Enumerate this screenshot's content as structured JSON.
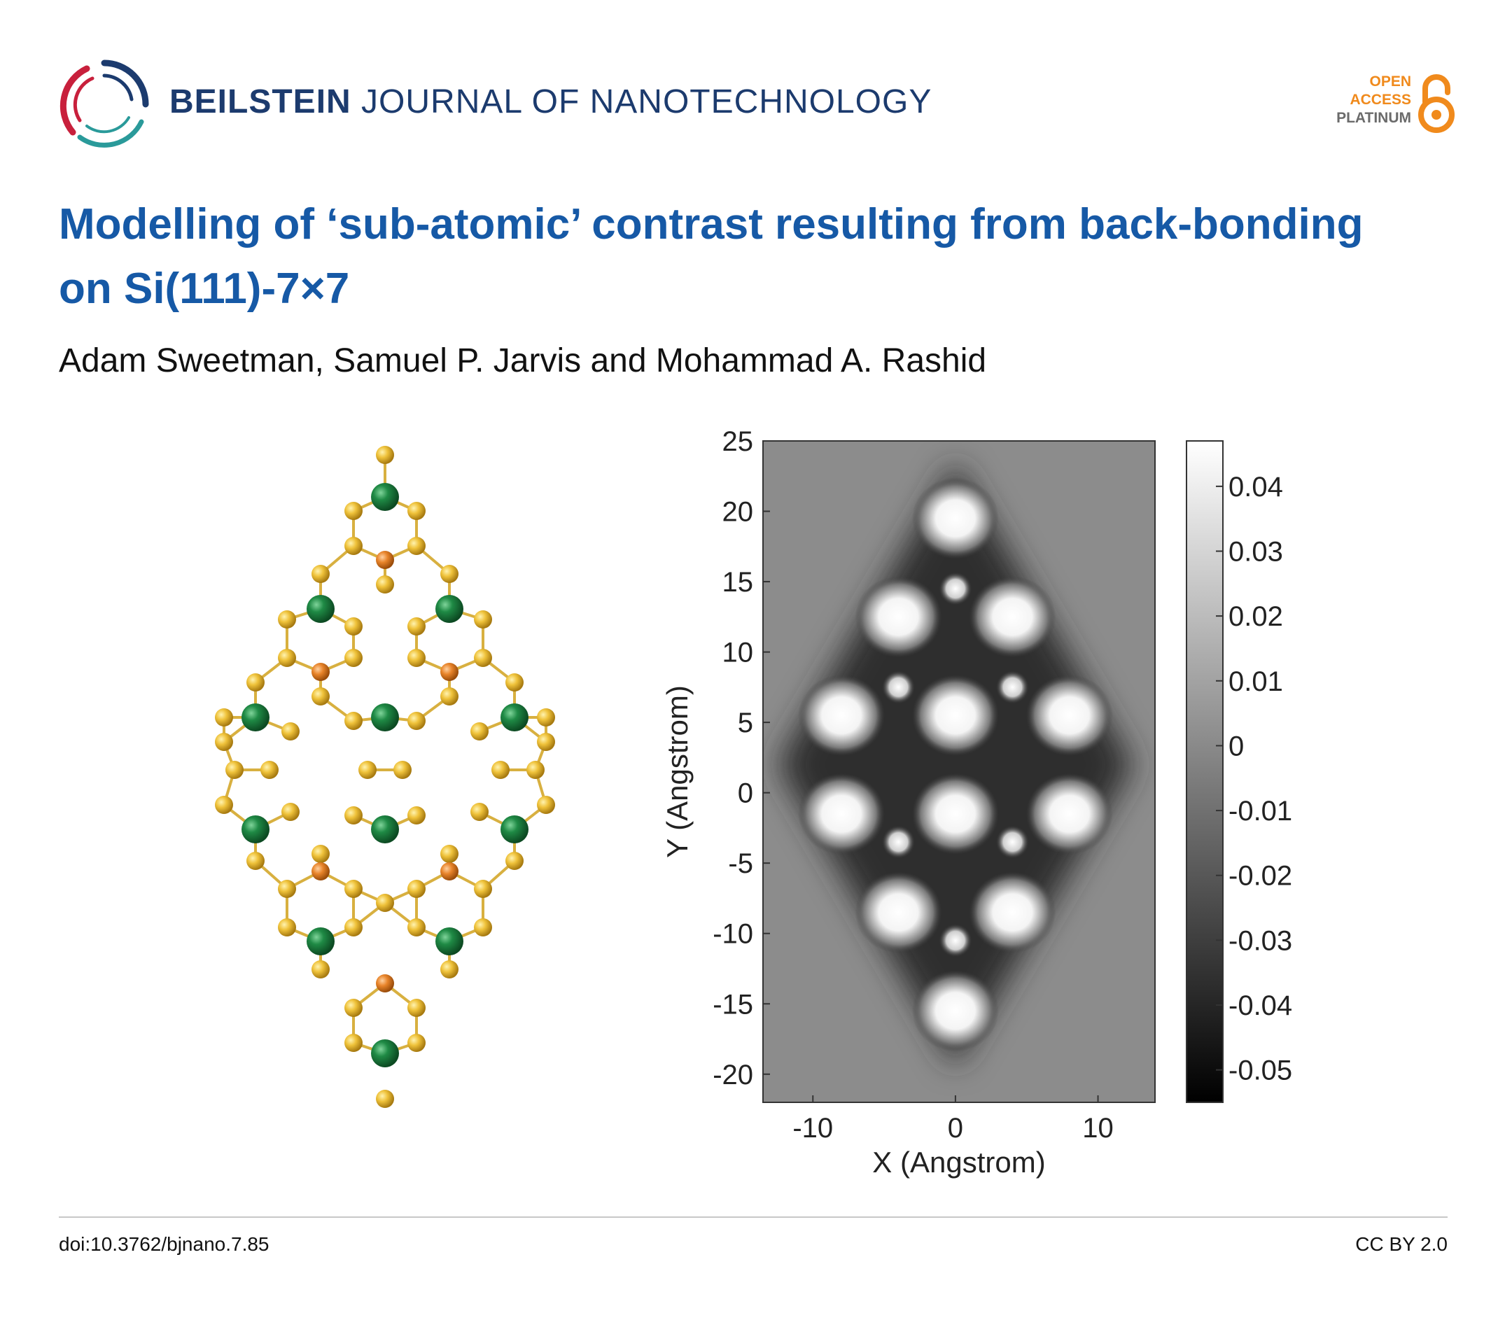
{
  "header": {
    "journal_bold": "BEILSTEIN",
    "journal_rest": " JOURNAL OF NANOTECHNOLOGY",
    "badge": {
      "line1": "OPEN",
      "line2": "ACCESS",
      "line3": "PLATINUM"
    },
    "colors": {
      "journal": "#1c3b6e",
      "badge_orange": "#f08a1c",
      "badge_gray": "#6b6b6b",
      "logo_red": "#c8203c",
      "logo_blue": "#1c3b6e",
      "logo_teal": "#2a9a9a"
    }
  },
  "article": {
    "title": "Modelling of ‘sub-atomic’ contrast resulting from back-bonding on Si(111)-7×7",
    "authors": "Adam Sweetman, Samuel P. Jarvis and Mohammad A. Rashid",
    "title_color": "#1659a6"
  },
  "figure_left": {
    "atom_colors": {
      "gold": "#e8b830",
      "green": "#1f7a3a",
      "orange": "#e07a20",
      "bond": "#d8b040"
    }
  },
  "chart_data": {
    "type": "heatmap",
    "xlabel": "X (Angstrom)",
    "ylabel": "Y (Angstrom)",
    "xlim": [
      -13.5,
      14
    ],
    "ylim": [
      -22,
      25
    ],
    "x_ticks": [
      -10,
      0,
      10
    ],
    "y_ticks": [
      25,
      20,
      15,
      10,
      5,
      0,
      -5,
      -10,
      -15,
      -20
    ],
    "x_tick_labels": [
      "-10",
      "0",
      "10"
    ],
    "y_tick_labels": [
      "25",
      "20",
      "15",
      "10",
      "5",
      "0",
      "-5",
      "-10",
      "-15",
      "-20"
    ],
    "colorbar": {
      "range": [
        -0.055,
        0.047
      ],
      "ticks": [
        0.04,
        0.03,
        0.02,
        0.01,
        0,
        -0.01,
        -0.02,
        -0.03,
        -0.04,
        -0.05
      ],
      "tick_labels": [
        "0.04",
        "0.03",
        "0.02",
        "0.01",
        "0",
        "-0.01",
        "-0.02",
        "-0.03",
        "-0.04",
        "-0.05"
      ],
      "colormap": "gray"
    },
    "background_value": 0.0,
    "bright_spots": [
      {
        "x": 0,
        "y": 19.5,
        "value": 0.045
      },
      {
        "x": -4,
        "y": 12.5,
        "value": 0.045
      },
      {
        "x": 4,
        "y": 12.5,
        "value": 0.045
      },
      {
        "x": -8,
        "y": 5.5,
        "value": 0.045
      },
      {
        "x": 0,
        "y": 5.5,
        "value": 0.045
      },
      {
        "x": 8,
        "y": 5.5,
        "value": 0.045
      },
      {
        "x": -8,
        "y": -1.5,
        "value": 0.045
      },
      {
        "x": 0,
        "y": -1.5,
        "value": 0.045
      },
      {
        "x": 8,
        "y": -1.5,
        "value": 0.045
      },
      {
        "x": -4,
        "y": -8.5,
        "value": 0.045
      },
      {
        "x": 4,
        "y": -8.5,
        "value": 0.045
      },
      {
        "x": 0,
        "y": -15.5,
        "value": 0.045
      }
    ],
    "small_spots": [
      {
        "x": 0,
        "y": 14.5,
        "value": 0.035
      },
      {
        "x": -4,
        "y": 7.5,
        "value": 0.035
      },
      {
        "x": 4,
        "y": 7.5,
        "value": 0.035
      },
      {
        "x": -4,
        "y": -3.5,
        "value": 0.035
      },
      {
        "x": 4,
        "y": -3.5,
        "value": 0.035
      },
      {
        "x": 0,
        "y": -10.5,
        "value": 0.035
      }
    ],
    "dark_region_value": -0.03
  },
  "footer": {
    "doi": "doi:10.3762/bjnano.7.85",
    "license": "CC BY 2.0"
  }
}
